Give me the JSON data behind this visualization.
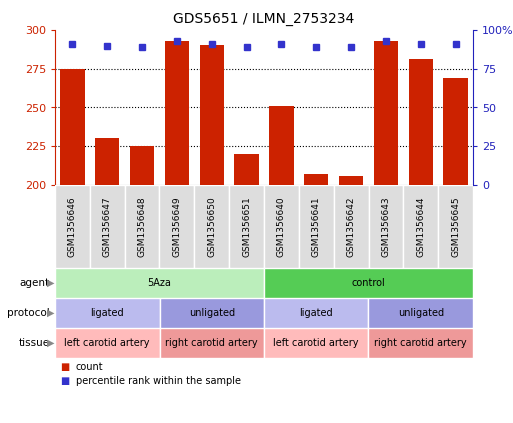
{
  "title": "GDS5651 / ILMN_2753234",
  "samples": [
    "GSM1356646",
    "GSM1356647",
    "GSM1356648",
    "GSM1356649",
    "GSM1356650",
    "GSM1356651",
    "GSM1356640",
    "GSM1356641",
    "GSM1356642",
    "GSM1356643",
    "GSM1356644",
    "GSM1356645"
  ],
  "counts": [
    275,
    230,
    225,
    293,
    290,
    220,
    251,
    207,
    206,
    293,
    281,
    269
  ],
  "percentile_ranks": [
    91,
    90,
    89,
    93,
    91,
    89,
    91,
    89,
    89,
    93,
    91,
    91
  ],
  "ylim_left": [
    200,
    300
  ],
  "yleft_ticks": [
    200,
    225,
    250,
    275,
    300
  ],
  "yright_ticks": [
    0,
    25,
    50,
    75,
    100
  ],
  "bar_color": "#cc2200",
  "dot_color": "#3333cc",
  "agent_groups": [
    {
      "label": "5Aza",
      "start": 0,
      "end": 6,
      "color": "#bbeebb"
    },
    {
      "label": "control",
      "start": 6,
      "end": 12,
      "color": "#55cc55"
    }
  ],
  "protocol_groups": [
    {
      "label": "ligated",
      "start": 0,
      "end": 3,
      "color": "#bbbbee"
    },
    {
      "label": "unligated",
      "start": 3,
      "end": 6,
      "color": "#9999dd"
    },
    {
      "label": "ligated",
      "start": 6,
      "end": 9,
      "color": "#bbbbee"
    },
    {
      "label": "unligated",
      "start": 9,
      "end": 12,
      "color": "#9999dd"
    }
  ],
  "tissue_groups": [
    {
      "label": "left carotid artery",
      "start": 0,
      "end": 3,
      "color": "#ffbbbb"
    },
    {
      "label": "right carotid artery",
      "start": 3,
      "end": 6,
      "color": "#ee9999"
    },
    {
      "label": "left carotid artery",
      "start": 6,
      "end": 9,
      "color": "#ffbbbb"
    },
    {
      "label": "right carotid artery",
      "start": 9,
      "end": 12,
      "color": "#ee9999"
    }
  ],
  "legend_count_color": "#cc2200",
  "legend_pct_color": "#3333cc",
  "axis_left_color": "#cc2200",
  "axis_right_color": "#2222bb",
  "row_labels": [
    "agent",
    "protocol",
    "tissue"
  ],
  "arrow_color": "#888888"
}
